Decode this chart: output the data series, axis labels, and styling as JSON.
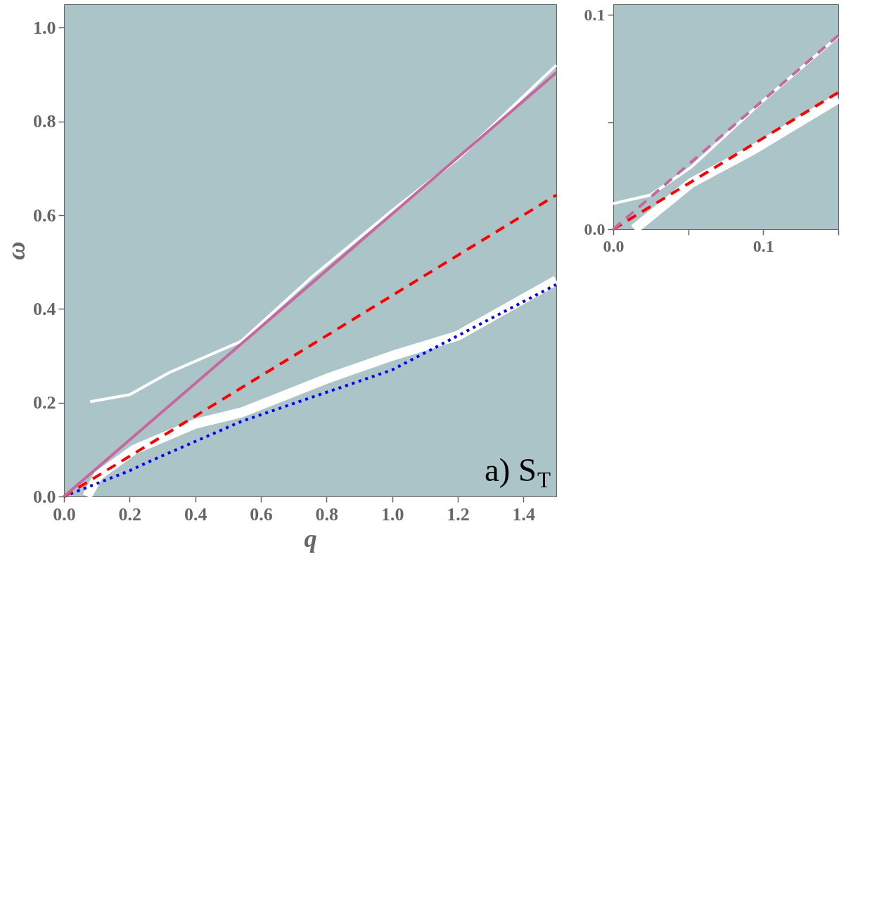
{
  "chart_data": [
    {
      "type": "line",
      "xlabel": "q",
      "ylabel": "ω",
      "xlim": [
        0,
        1.5
      ],
      "ylim": [
        0,
        1.05
      ],
      "xticks": [
        {
          "value": 0,
          "label": "0.0"
        },
        {
          "value": 0.2,
          "label": "0.2"
        },
        {
          "value": 0.4,
          "label": "0.4"
        },
        {
          "value": 0.6,
          "label": "0.6"
        },
        {
          "value": 0.8,
          "label": "0.8"
        },
        {
          "value": 1.0,
          "label": "1.0"
        },
        {
          "value": 1.2,
          "label": "1.2"
        },
        {
          "value": 1.4,
          "label": "1.4"
        }
      ],
      "yticks": [
        {
          "value": 0,
          "label": "0.0"
        },
        {
          "value": 0.2,
          "label": "0.2"
        },
        {
          "value": 0.4,
          "label": "0.4"
        },
        {
          "value": 0.6,
          "label": "0.6"
        },
        {
          "value": 0.8,
          "label": "0.8"
        },
        {
          "value": 1.0,
          "label": "1.0"
        }
      ],
      "grid": false,
      "annotations": [
        "a) S$_{T}$"
      ],
      "series": [
        {
          "color": "#ffffff",
          "line_style": "solid",
          "x": [
            0.07,
            0.105,
            0.214,
            0.4,
            0.54,
            0.8,
            1.0,
            1.2,
            1.5
          ],
          "values": [
            0.0,
            0.045,
            0.1,
            0.155,
            0.179,
            0.251,
            0.3,
            0.343,
            0.461
          ]
        },
        {
          "color": "#ffffff",
          "line_style": "solid",
          "x": [
            0.08,
            0.2,
            0.323,
            0.54,
            0.757,
            1.0,
            1.2,
            1.5
          ],
          "values": [
            0.202,
            0.217,
            0.265,
            0.331,
            0.469,
            0.61,
            0.72,
            0.92
          ]
        },
        {
          "color": "#0000ff",
          "line_style": "dotted",
          "x": [
            0.0,
            0.2,
            0.268,
            0.54,
            1.0,
            1.5
          ],
          "values": [
            0.0,
            0.055,
            0.077,
            0.16,
            0.27,
            0.452
          ]
        },
        {
          "color": "#ff0000",
          "line_style": "dashed",
          "x": [
            0.0,
            1.5
          ],
          "values": [
            0.0,
            0.643
          ]
        },
        {
          "color": "#c8669e",
          "line_style": "solid",
          "x": [
            0.0,
            1.5
          ],
          "values": [
            0.0,
            0.904
          ]
        }
      ]
    },
    {
      "type": "line",
      "xlim": [
        0,
        0.15
      ],
      "ylim": [
        0,
        0.105
      ],
      "xticks": [
        {
          "value": 0,
          "label": "0.0"
        },
        {
          "value": 0.05,
          "label": null
        },
        {
          "value": 0.1,
          "label": "0.1"
        },
        {
          "value": 0.15,
          "label": null
        }
      ],
      "yticks": [
        {
          "value": 0,
          "label": "0.0"
        },
        {
          "value": 0.05,
          "label": null
        },
        {
          "value": 0.1,
          "label": "0.1"
        }
      ],
      "grid": false,
      "series": [
        {
          "color": "#ffffff",
          "line_style": "solid",
          "x": [
            0.014,
            0.052,
            0.093,
            0.15
          ],
          "values": [
            0.0,
            0.0216,
            0.037,
            0.061
          ]
        },
        {
          "color": "#ffffff",
          "line_style": "solid",
          "x": [
            0.0,
            0.025,
            0.052,
            0.1,
            0.15
          ],
          "values": [
            0.012,
            0.016,
            0.029,
            0.06,
            0.09
          ]
        },
        {
          "color": "#ff0000",
          "line_style": "dashed",
          "x": [
            0.0,
            0.15
          ],
          "values": [
            0.0,
            0.0638
          ]
        },
        {
          "color": "#c8669e",
          "line_style": "dashed",
          "x": [
            0.0,
            0.15
          ],
          "values": [
            0.0,
            0.0904
          ]
        }
      ]
    }
  ]
}
